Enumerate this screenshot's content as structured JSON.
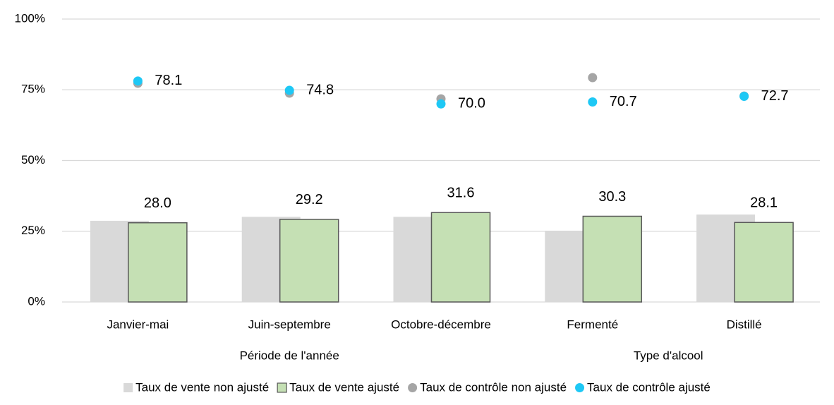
{
  "chart_data": {
    "type": "bar",
    "categories": [
      "Janvier-mai",
      "Juin-septembre",
      "Octobre-décembre",
      "Fermenté",
      "Distillé"
    ],
    "category_groups": [
      {
        "label": "Période de l'année",
        "span": 3
      },
      {
        "label": "Type d'alcool",
        "span": 2
      }
    ],
    "series": [
      {
        "name": "Taux de vente non ajusté",
        "type": "bar",
        "color": "#d9d9d9",
        "values": [
          28.7,
          30.1,
          30.1,
          25.2,
          30.9
        ]
      },
      {
        "name": "Taux de vente ajusté",
        "type": "bar",
        "color": "#c5e0b4",
        "stroke": "#595959",
        "values": [
          28.0,
          29.2,
          31.6,
          30.3,
          28.1
        ],
        "value_labels": [
          "28.0",
          "29.2",
          "31.6",
          "30.3",
          "28.1"
        ]
      },
      {
        "name": "Taux de contrôle non ajusté",
        "type": "scatter",
        "color": "#a5a5a5",
        "values": [
          77.3,
          73.8,
          71.8,
          79.3,
          72.8
        ]
      },
      {
        "name": "Taux de contrôle ajusté",
        "type": "scatter",
        "color": "#1ec8f5",
        "values": [
          78.1,
          74.8,
          70.0,
          70.7,
          72.7
        ],
        "value_labels": [
          "78.1",
          "74.8",
          "70.0",
          "70.7",
          "72.7"
        ]
      }
    ],
    "ylim": [
      0,
      100
    ],
    "yticks": [
      {
        "value": 0,
        "label": "0%"
      },
      {
        "value": 25,
        "label": "25%"
      },
      {
        "value": 50,
        "label": "50%"
      },
      {
        "value": 75,
        "label": "75%"
      },
      {
        "value": 100,
        "label": "100%"
      }
    ],
    "grid": true
  }
}
